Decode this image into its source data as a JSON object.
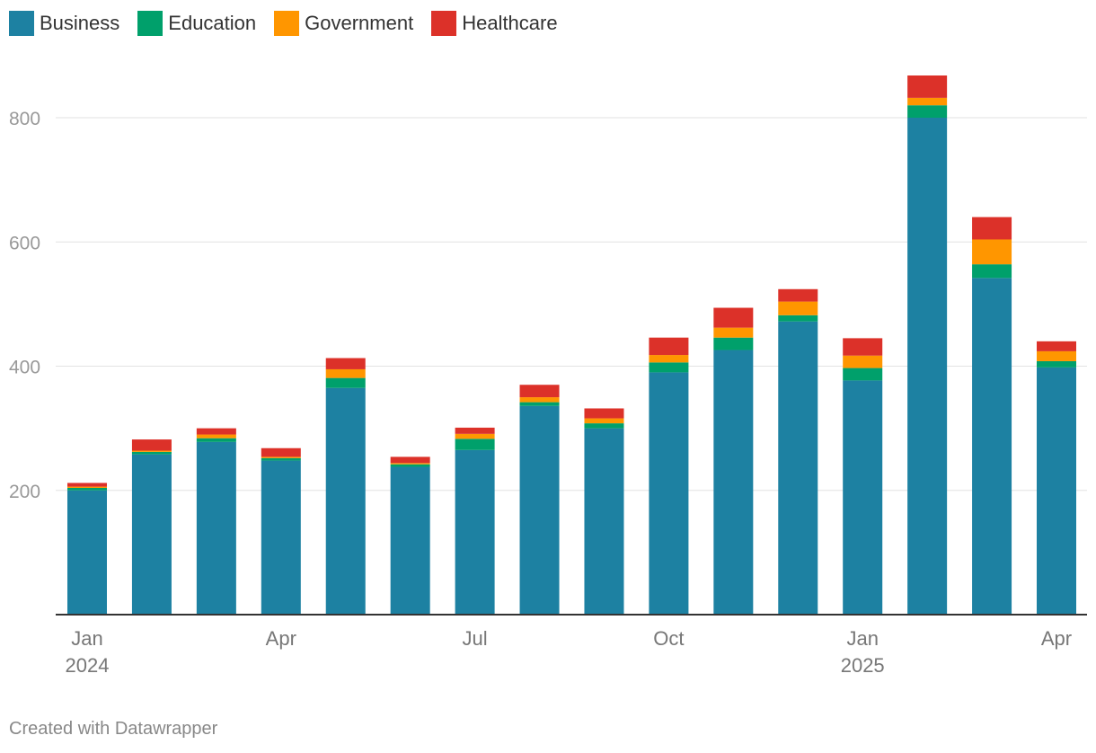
{
  "chart_data": {
    "type": "stacked-bar",
    "ylim": [
      0,
      900
    ],
    "yticks": [
      200,
      400,
      600,
      800
    ],
    "categories": [
      "2024-01",
      "2024-02",
      "2024-03",
      "2024-04",
      "2024-05",
      "2024-06",
      "2024-07",
      "2024-08",
      "2024-09",
      "2024-10",
      "2024-11",
      "2024-12",
      "2025-01",
      "2025-02",
      "2025-03",
      "2025-04"
    ],
    "x_tick_labels": [
      {
        "index": 0,
        "month": "Jan",
        "year": "2024"
      },
      {
        "index": 3,
        "month": "Apr",
        "year": ""
      },
      {
        "index": 6,
        "month": "Jul",
        "year": ""
      },
      {
        "index": 9,
        "month": "Oct",
        "year": ""
      },
      {
        "index": 12,
        "month": "Jan",
        "year": "2025"
      },
      {
        "index": 15,
        "month": "Apr",
        "year": ""
      }
    ],
    "series": [
      {
        "name": "Business",
        "color": "#1d81a2",
        "values": [
          200,
          258,
          278,
          248,
          365,
          238,
          265,
          336,
          300,
          390,
          426,
          472,
          377,
          800,
          542,
          398
        ]
      },
      {
        "name": "Education",
        "color": "#00a06b",
        "values": [
          4,
          4,
          6,
          4,
          16,
          4,
          18,
          6,
          8,
          16,
          20,
          10,
          20,
          20,
          22,
          10
        ]
      },
      {
        "name": "Government",
        "color": "#ff9600",
        "values": [
          2,
          2,
          6,
          2,
          14,
          2,
          8,
          8,
          8,
          12,
          16,
          22,
          20,
          12,
          40,
          16
        ]
      },
      {
        "name": "Healthcare",
        "color": "#dc3129",
        "values": [
          6,
          18,
          10,
          14,
          18,
          10,
          10,
          20,
          16,
          28,
          32,
          20,
          28,
          36,
          36,
          16
        ]
      }
    ]
  },
  "footer": "Created with Datawrapper"
}
